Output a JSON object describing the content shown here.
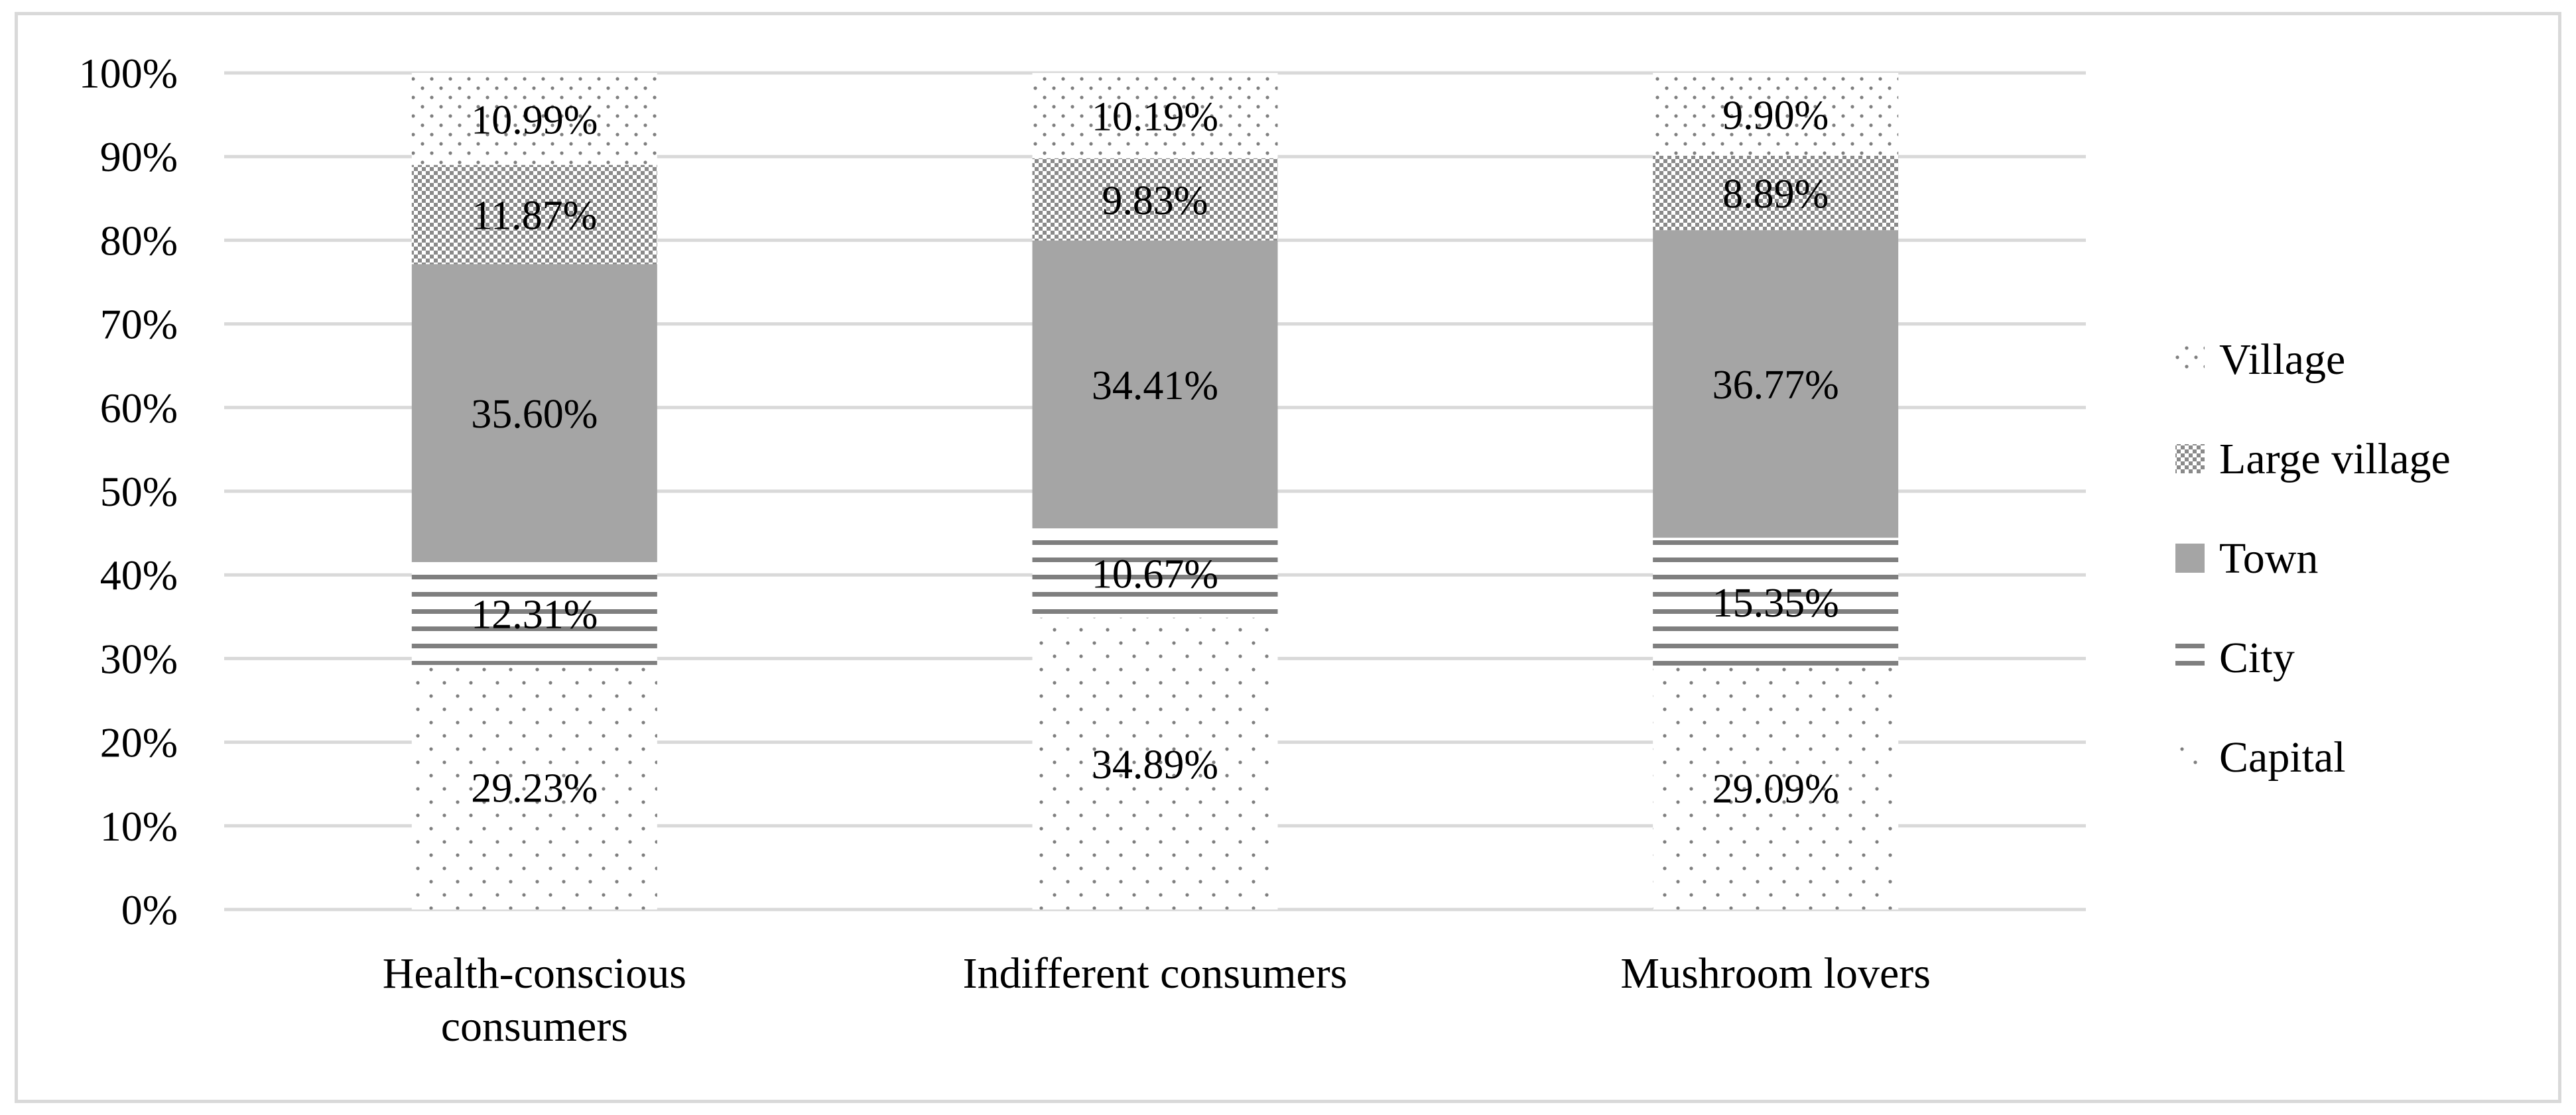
{
  "chart_data": {
    "type": "bar",
    "stacked": true,
    "percent_stacked": true,
    "title": "",
    "xlabel": "",
    "ylabel": "",
    "ylim": [
      0,
      100
    ],
    "y_ticks": [
      "0%",
      "10%",
      "20%",
      "30%",
      "40%",
      "50%",
      "60%",
      "70%",
      "80%",
      "90%",
      "100%"
    ],
    "grid": true,
    "legend_position": "right",
    "categories": [
      [
        "Health-conscious",
        "consumers"
      ],
      [
        "Indifferent consumers"
      ],
      [
        "Mushroom lovers"
      ]
    ],
    "series": [
      {
        "name": "Capital",
        "pattern": "sparse-dots",
        "values": [
          29.23,
          34.89,
          29.09
        ],
        "labels": [
          "29.23%",
          "34.89%",
          "29.09%"
        ]
      },
      {
        "name": "City",
        "pattern": "horizontal-lines",
        "values": [
          12.31,
          10.67,
          15.35
        ],
        "labels": [
          "12.31%",
          "10.67%",
          "15.35%"
        ]
      },
      {
        "name": "Town",
        "pattern": "solid-gray",
        "values": [
          35.6,
          34.41,
          36.77
        ],
        "labels": [
          "35.60%",
          "34.41%",
          "36.77%"
        ]
      },
      {
        "name": "Large village",
        "pattern": "checker",
        "values": [
          11.87,
          9.83,
          8.89
        ],
        "labels": [
          "11.87%",
          "9.83%",
          "8.89%"
        ]
      },
      {
        "name": "Village",
        "pattern": "dense-dots",
        "values": [
          10.99,
          10.19,
          9.9
        ],
        "labels": [
          "10.99%",
          "10.19%",
          "9.90%"
        ]
      }
    ],
    "legend_order": [
      "Village",
      "Large village",
      "Town",
      "City",
      "Capital"
    ],
    "colors": {
      "grid": "#d9d9d9",
      "town": "#a5a5a5",
      "city_lines": "#7f7f7f",
      "dots": "#7f7f7f",
      "text": "#000000",
      "frame": "#d9d9d9"
    }
  }
}
